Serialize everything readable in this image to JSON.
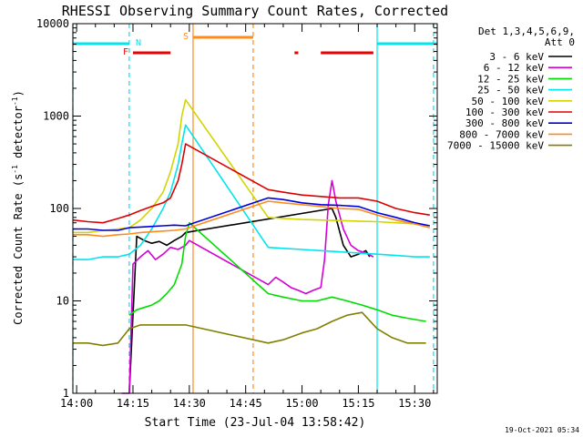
{
  "chart_data": {
    "type": "line",
    "title": "RHESSI Observing Summary Count Rates, Corrected",
    "xlabel": "Start Time (23-Jul-04 13:58:42)",
    "ylabel_main": "Corrected Count Rate (s",
    "ylabel_sup1": "-1",
    "ylabel_mid": " detector",
    "ylabel_sup2": "-1",
    "ylabel_end": ")",
    "y_scale": "log",
    "ylim": [
      1,
      10000
    ],
    "xlim": [
      "13:59",
      "15:36"
    ],
    "x_ticks": [
      "14:00",
      "14:15",
      "14:30",
      "14:45",
      "15:00",
      "15:15",
      "15:30"
    ],
    "y_ticks": [
      "1",
      "10",
      "100",
      "1000",
      "10000"
    ],
    "grid": false,
    "legend_header": [
      "Det 1,3,4,5,6,9,",
      "Att 0"
    ],
    "legend_position": "right",
    "footer": "19-Oct-2021 05:34",
    "flags": [
      {
        "label": "N",
        "color": "#00e5ee",
        "spans": [
          [
            "13:59",
            "14:14"
          ],
          [
            "15:20",
            "15:36"
          ]
        ]
      },
      {
        "label": "F",
        "color": "#ee0000",
        "spans": [
          [
            "14:15",
            "14:25"
          ],
          [
            "14:58",
            "14:59"
          ],
          [
            "15:05",
            "15:19"
          ]
        ]
      },
      {
        "label": "S",
        "color": "#ff8c1a",
        "spans": [
          [
            "14:31",
            "14:47"
          ]
        ]
      }
    ],
    "vlines": [
      {
        "t": "13:59",
        "color": "#00e5ee",
        "style": "dashed"
      },
      {
        "t": "14:14",
        "color": "#00e5ee",
        "style": "dashed"
      },
      {
        "t": "14:31",
        "color": "#ff8c1a",
        "style": "solid"
      },
      {
        "t": "14:47",
        "color": "#ff8c1a",
        "style": "dashed"
      },
      {
        "t": "15:20",
        "color": "#00e5ee",
        "style": "solid"
      },
      {
        "t": "15:35",
        "color": "#00e5ee",
        "style": "dashed"
      }
    ],
    "series": [
      {
        "name": "3 - 6 keV",
        "color": "#000000",
        "x": [
          "14:14",
          "14:16",
          "14:18",
          "14:20",
          "14:22",
          "14:24",
          "14:26",
          "14:28",
          "14:29",
          "15:08",
          "15:09",
          "15:11",
          "15:13",
          "15:15",
          "15:17",
          "15:18"
        ],
        "y": [
          1,
          50,
          45,
          42,
          44,
          40,
          45,
          50,
          55,
          100,
          80,
          40,
          30,
          32,
          35,
          30
        ]
      },
      {
        "name": "6 - 12 keV",
        "color": "#d400d4",
        "x": [
          "14:12",
          "14:13",
          "14:14",
          "14:15",
          "14:17",
          "14:19",
          "14:21",
          "14:23",
          "14:25",
          "14:27",
          "14:29",
          "14:30",
          "14:51",
          "14:53",
          "14:55",
          "14:57",
          "14:59",
          "15:01",
          "15:03",
          "15:05",
          "15:06",
          "15:07",
          "15:08",
          "15:09",
          "15:11",
          "15:13",
          "15:15",
          "15:17",
          "15:19"
        ],
        "y": [
          1,
          1,
          1,
          25,
          30,
          35,
          28,
          32,
          38,
          36,
          40,
          45,
          15,
          18,
          16,
          14,
          13,
          12,
          13,
          14,
          28,
          110,
          200,
          120,
          60,
          40,
          35,
          33,
          30
        ]
      },
      {
        "name": "12 - 25 keV",
        "color": "#00dd00",
        "x": [
          "14:14",
          "14:16",
          "14:18",
          "14:20",
          "14:22",
          "14:24",
          "14:26",
          "14:28",
          "14:29",
          "14:30",
          "14:51",
          "14:55",
          "15:00",
          "15:04",
          "15:08",
          "15:12",
          "15:16",
          "15:20",
          "15:24",
          "15:28",
          "15:33"
        ],
        "y": [
          7,
          8,
          8.5,
          9,
          10,
          12,
          15,
          25,
          50,
          70,
          12,
          11,
          10,
          10,
          11,
          10,
          9,
          8,
          7,
          6.5,
          6
        ]
      },
      {
        "name": "25 - 50 keV",
        "color": "#00e5ee",
        "x": [
          "13:59",
          "14:03",
          "14:07",
          "14:11",
          "14:14",
          "14:17",
          "14:20",
          "14:23",
          "14:25",
          "14:27",
          "14:28",
          "14:29",
          "14:51",
          "14:55",
          "15:00",
          "15:05",
          "15:10",
          "15:15",
          "15:20",
          "15:25",
          "15:30",
          "15:34"
        ],
        "y": [
          28,
          28,
          30,
          30,
          32,
          40,
          60,
          100,
          150,
          300,
          500,
          800,
          38,
          37,
          36,
          35,
          34,
          33,
          32,
          31,
          30,
          30
        ]
      },
      {
        "name": "50 - 100 keV",
        "color": "#d4d400",
        "x": [
          "13:59",
          "14:03",
          "14:07",
          "14:11",
          "14:14",
          "14:17",
          "14:20",
          "14:23",
          "14:25",
          "14:27",
          "14:28",
          "14:29",
          "14:51",
          "14:55",
          "15:00",
          "15:05",
          "15:10",
          "15:15",
          "15:20",
          "15:25",
          "15:30",
          "15:34"
        ],
        "y": [
          55,
          55,
          58,
          60,
          62,
          75,
          100,
          150,
          250,
          500,
          1000,
          1500,
          80,
          78,
          76,
          75,
          74,
          73,
          72,
          70,
          68,
          65
        ]
      },
      {
        "name": "100 - 300 keV",
        "color": "#dd0000",
        "x": [
          "13:59",
          "14:03",
          "14:07",
          "14:11",
          "14:14",
          "14:17",
          "14:20",
          "14:23",
          "14:25",
          "14:27",
          "14:28",
          "14:29",
          "14:51",
          "14:55",
          "15:00",
          "15:05",
          "15:10",
          "15:15",
          "15:20",
          "15:25",
          "15:30",
          "15:34"
        ],
        "y": [
          75,
          72,
          70,
          78,
          85,
          95,
          105,
          115,
          130,
          200,
          300,
          500,
          160,
          150,
          140,
          135,
          130,
          130,
          120,
          100,
          90,
          85
        ]
      },
      {
        "name": "300 - 800 keV",
        "color": "#0000dd",
        "x": [
          "13:59",
          "14:03",
          "14:07",
          "14:11",
          "14:14",
          "14:17",
          "14:20",
          "14:23",
          "14:26",
          "14:29",
          "14:51",
          "14:55",
          "15:00",
          "15:05",
          "15:10",
          "15:15",
          "15:20",
          "15:25",
          "15:30",
          "15:34"
        ],
        "y": [
          60,
          60,
          58,
          58,
          62,
          63,
          64,
          65,
          66,
          65,
          130,
          125,
          115,
          110,
          108,
          105,
          90,
          80,
          70,
          65
        ]
      },
      {
        "name": "800 - 7000 keV",
        "color": "#ff8c1a",
        "x": [
          "13:59",
          "14:03",
          "14:07",
          "14:11",
          "14:14",
          "14:17",
          "14:20",
          "14:23",
          "14:26",
          "14:29",
          "14:51",
          "14:55",
          "15:00",
          "15:05",
          "15:10",
          "15:15",
          "15:20",
          "15:25",
          "15:30",
          "15:34"
        ],
        "y": [
          52,
          52,
          50,
          52,
          53,
          55,
          56,
          57,
          58,
          60,
          120,
          115,
          110,
          105,
          100,
          98,
          85,
          75,
          68,
          62
        ]
      },
      {
        "name": "7000 - 15000 keV",
        "color": "#808000",
        "x": [
          "13:59",
          "14:03",
          "14:07",
          "14:11",
          "14:14",
          "14:17",
          "14:20",
          "14:23",
          "14:26",
          "14:29",
          "14:51",
          "14:55",
          "15:00",
          "15:04",
          "15:08",
          "15:12",
          "15:16",
          "15:20",
          "15:24",
          "15:28",
          "15:33"
        ],
        "y": [
          3.5,
          3.5,
          3.3,
          3.5,
          5,
          5.5,
          5.5,
          5.5,
          5.5,
          5.5,
          3.5,
          3.8,
          4.5,
          5,
          6,
          7,
          7.5,
          5,
          4,
          3.5,
          3.5
        ]
      }
    ]
  }
}
